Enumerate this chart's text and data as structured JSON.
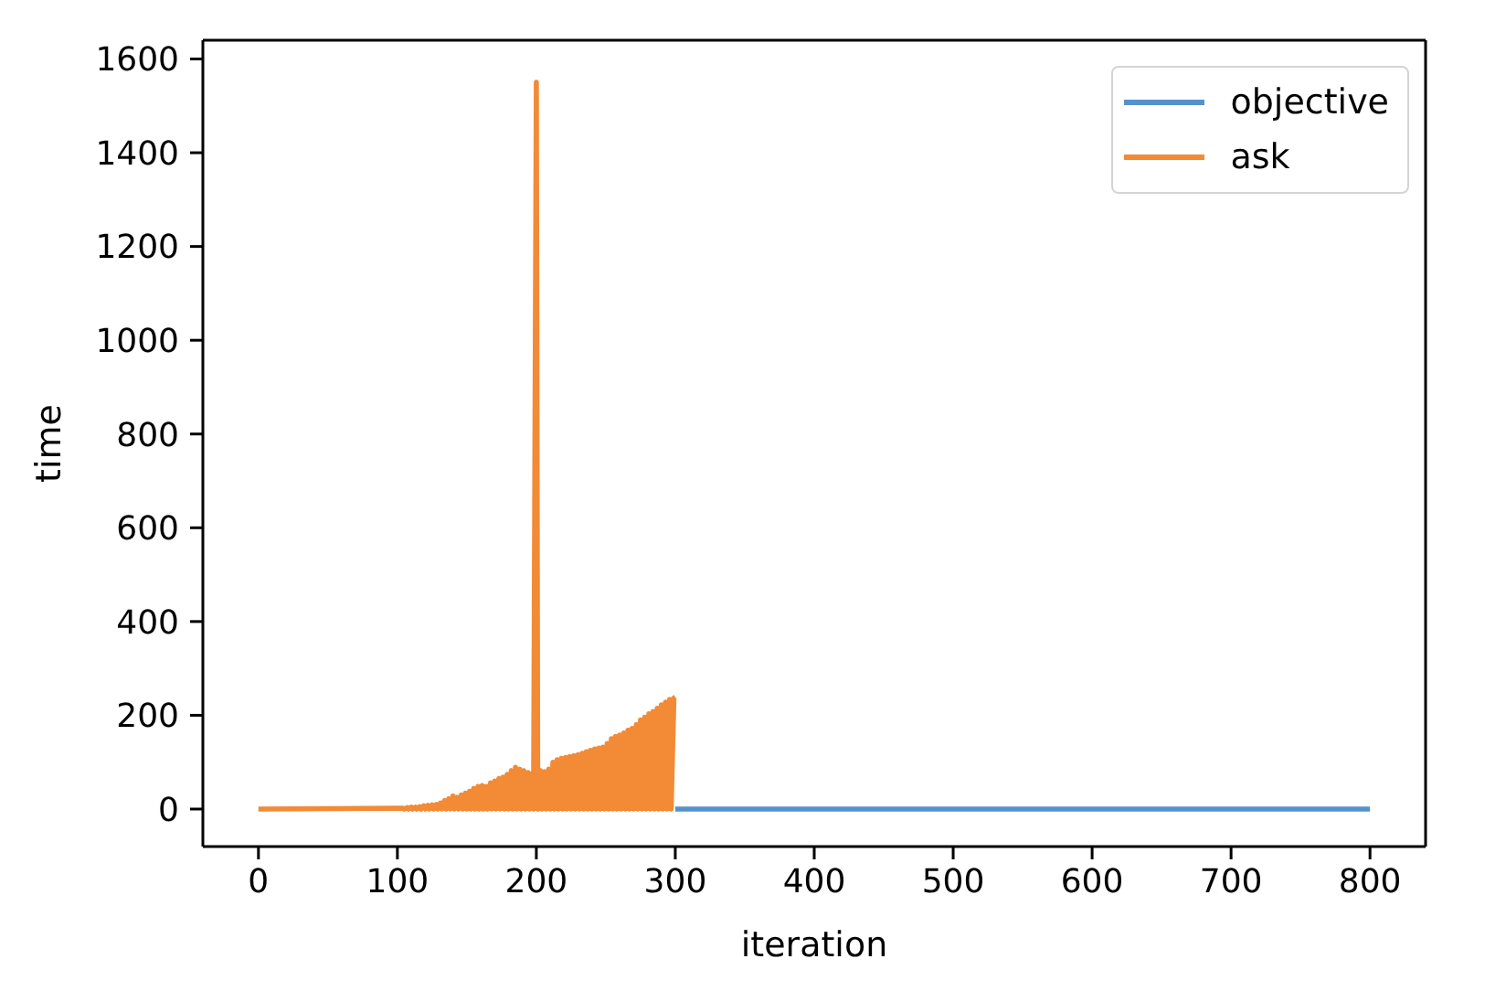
{
  "chart_data": {
    "type": "line",
    "xlabel": "iteration",
    "ylabel": "time",
    "xlim": [
      -40,
      840
    ],
    "xticks": [
      0,
      100,
      200,
      300,
      400,
      500,
      600,
      700,
      800
    ],
    "ylim": [
      -80,
      1640
    ],
    "yticks": [
      0,
      200,
      400,
      600,
      800,
      1000,
      1200,
      1400,
      1600
    ],
    "legend": "top right",
    "series": [
      {
        "name": "objective",
        "color": "#5592cd",
        "x": [
          300,
          800
        ],
        "values": [
          0,
          0
        ]
      },
      {
        "name": "ask",
        "color": "#f28a36",
        "x": [
          0,
          104,
          105,
          107,
          108,
          110,
          111,
          113,
          114,
          116,
          117,
          119,
          120,
          122,
          123,
          125,
          126,
          128,
          129,
          131,
          132,
          134,
          135,
          137,
          138,
          140,
          141,
          143,
          144,
          146,
          147,
          149,
          150,
          152,
          153,
          155,
          156,
          158,
          159,
          161,
          162,
          164,
          165,
          167,
          168,
          170,
          171,
          173,
          174,
          176,
          177,
          179,
          180,
          182,
          183,
          185,
          186,
          188,
          189,
          191,
          192,
          194,
          195,
          197,
          198,
          200,
          201,
          203,
          204,
          206,
          207,
          209,
          210,
          212,
          213,
          215,
          216,
          218,
          219,
          221,
          222,
          224,
          225,
          227,
          228,
          230,
          231,
          233,
          234,
          236,
          237,
          239,
          240,
          242,
          243,
          245,
          246,
          248,
          249,
          251,
          252,
          254,
          255,
          257,
          258,
          260,
          261,
          263,
          264,
          266,
          267,
          269,
          270,
          272,
          273,
          275,
          276,
          278,
          279,
          281,
          282,
          284,
          285,
          287,
          288,
          290,
          291,
          293,
          294,
          296,
          297,
          299,
          300
        ],
        "values": [
          0,
          2,
          0,
          3,
          0,
          4,
          0,
          4,
          0,
          5,
          0,
          7,
          0,
          8,
          0,
          9,
          0,
          10,
          0,
          13,
          0,
          18,
          0,
          22,
          0,
          28,
          0,
          25,
          0,
          30,
          0,
          34,
          0,
          38,
          0,
          44,
          0,
          48,
          0,
          50,
          0,
          48,
          0,
          56,
          0,
          60,
          0,
          65,
          0,
          68,
          0,
          74,
          0,
          82,
          0,
          89,
          0,
          85,
          0,
          82,
          0,
          78,
          0,
          76,
          0,
          1550,
          0,
          82,
          0,
          80,
          0,
          85,
          0,
          100,
          0,
          105,
          0,
          108,
          0,
          110,
          0,
          112,
          0,
          114,
          0,
          116,
          0,
          119,
          0,
          122,
          0,
          125,
          0,
          128,
          0,
          130,
          0,
          132,
          0,
          140,
          0,
          150,
          0,
          155,
          0,
          158,
          0,
          162,
          0,
          168,
          0,
          172,
          0,
          180,
          0,
          190,
          0,
          196,
          0,
          203,
          0,
          208,
          0,
          215,
          0,
          222,
          0,
          228,
          0,
          234,
          0,
          237,
          239
        ]
      }
    ]
  }
}
